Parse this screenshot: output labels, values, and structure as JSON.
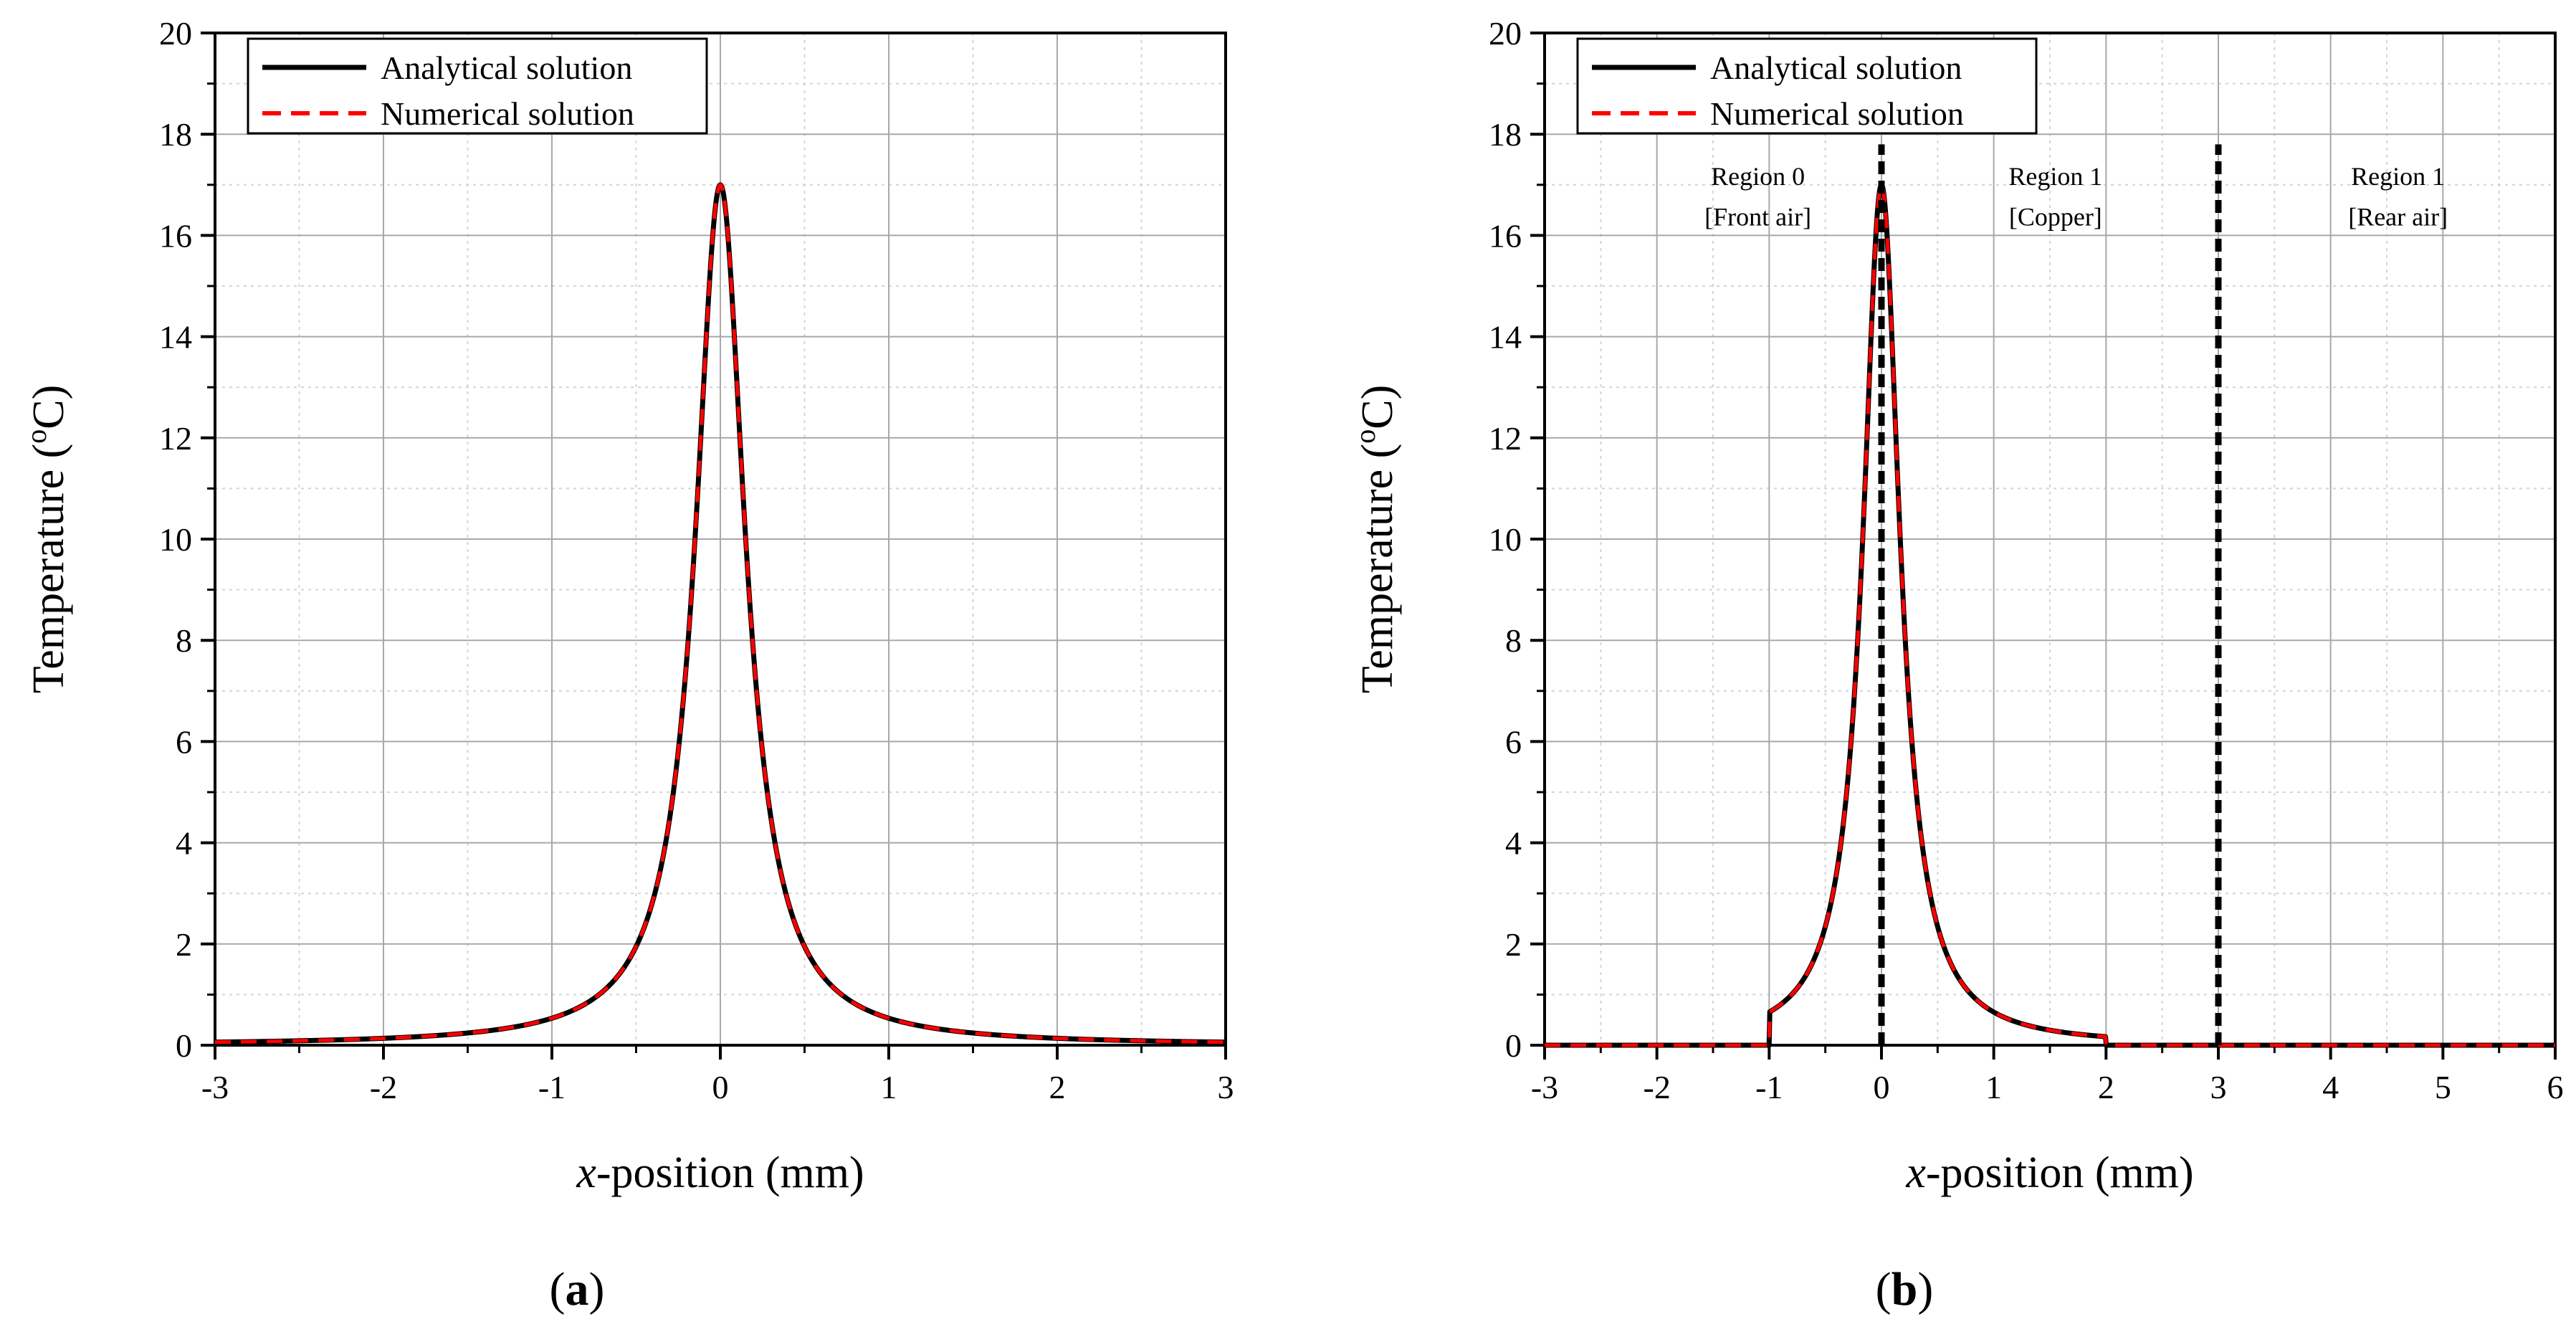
{
  "chart_data": [
    {
      "panel": "a",
      "panel_label": "a",
      "type": "line",
      "title": "",
      "xlabel_italic": "x",
      "xlabel_rest": "-position (mm)",
      "ylabel_main": "Temperature (",
      "ylabel_sup": "o",
      "ylabel_end": "C)",
      "xlim": [
        -3,
        3
      ],
      "ylim": [
        0,
        20
      ],
      "xticks": [
        -3,
        -2,
        -1,
        0,
        1,
        2,
        3
      ],
      "yticks": [
        0,
        2,
        4,
        6,
        8,
        10,
        12,
        14,
        16,
        18,
        20
      ],
      "grid": true,
      "legend_position": "top-left",
      "curve": {
        "peak_x": 0,
        "peak_value": 17.0,
        "shape": "lorentzian",
        "half_width_mm": 0.18,
        "domain": [
          -3,
          3
        ]
      },
      "series": [
        {
          "name": "Analytical solution",
          "color": "#000000",
          "style": "solid"
        },
        {
          "name": "Numerical solution",
          "color": "#ff0000",
          "style": "dashed"
        }
      ],
      "sample_points": [
        {
          "x": -3,
          "y": 0.0
        },
        {
          "x": -2,
          "y": 0.05
        },
        {
          "x": -1,
          "y": 0.4
        },
        {
          "x": -0.5,
          "y": 1.6
        },
        {
          "x": -0.25,
          "y": 4.8
        },
        {
          "x": 0,
          "y": 17.0
        },
        {
          "x": 0.25,
          "y": 4.8
        },
        {
          "x": 0.5,
          "y": 1.6
        },
        {
          "x": 1,
          "y": 0.4
        },
        {
          "x": 2,
          "y": 0.05
        },
        {
          "x": 3,
          "y": 0.0
        }
      ],
      "vlines": [],
      "annotations": []
    },
    {
      "panel": "b",
      "panel_label": "b",
      "type": "line",
      "title": "",
      "xlabel_italic": "x",
      "xlabel_rest": "-position (mm)",
      "ylabel_main": "Temperature (",
      "ylabel_sup": "o",
      "ylabel_end": "C)",
      "xlim": [
        -3,
        6
      ],
      "ylim": [
        0,
        20
      ],
      "xticks": [
        -3,
        -2,
        -1,
        0,
        1,
        2,
        3,
        4,
        5,
        6
      ],
      "yticks": [
        0,
        2,
        4,
        6,
        8,
        10,
        12,
        14,
        16,
        18,
        20
      ],
      "grid": true,
      "legend_position": "top-left",
      "curve": {
        "peak_x": 0,
        "peak_value": 17.0,
        "shape": "lorentzian",
        "half_width_mm": 0.2,
        "domain": [
          -1,
          2
        ]
      },
      "series": [
        {
          "name": "Analytical solution",
          "color": "#000000",
          "style": "solid"
        },
        {
          "name": "Numerical solution",
          "color": "#ff0000",
          "style": "dashed"
        }
      ],
      "sample_points": [
        {
          "x": -3,
          "y": 0.0
        },
        {
          "x": -1,
          "y": 0.0
        },
        {
          "x": -0.5,
          "y": 1.6
        },
        {
          "x": -0.25,
          "y": 4.8
        },
        {
          "x": 0,
          "y": 17.0
        },
        {
          "x": 0.25,
          "y": 4.8
        },
        {
          "x": 0.5,
          "y": 1.6
        },
        {
          "x": 1,
          "y": 0.4
        },
        {
          "x": 2,
          "y": 0.0
        },
        {
          "x": 6,
          "y": 0.0
        }
      ],
      "vlines": [
        {
          "x": 0,
          "y_top": 17.8,
          "style": "dashed",
          "color": "#000000"
        },
        {
          "x": 3,
          "y_top": 17.8,
          "style": "dashed",
          "color": "#000000"
        }
      ],
      "annotations": [
        {
          "x": -1.1,
          "y1": 17.0,
          "y2": 16.2,
          "line1": "Region 0",
          "line2": "[Front air]"
        },
        {
          "x": 1.55,
          "y1": 17.0,
          "y2": 16.2,
          "line1": "Region 1",
          "line2": "[Copper]"
        },
        {
          "x": 4.6,
          "y1": 17.0,
          "y2": 16.2,
          "line1": "Region 1",
          "line2": "[Rear air]"
        }
      ]
    }
  ]
}
